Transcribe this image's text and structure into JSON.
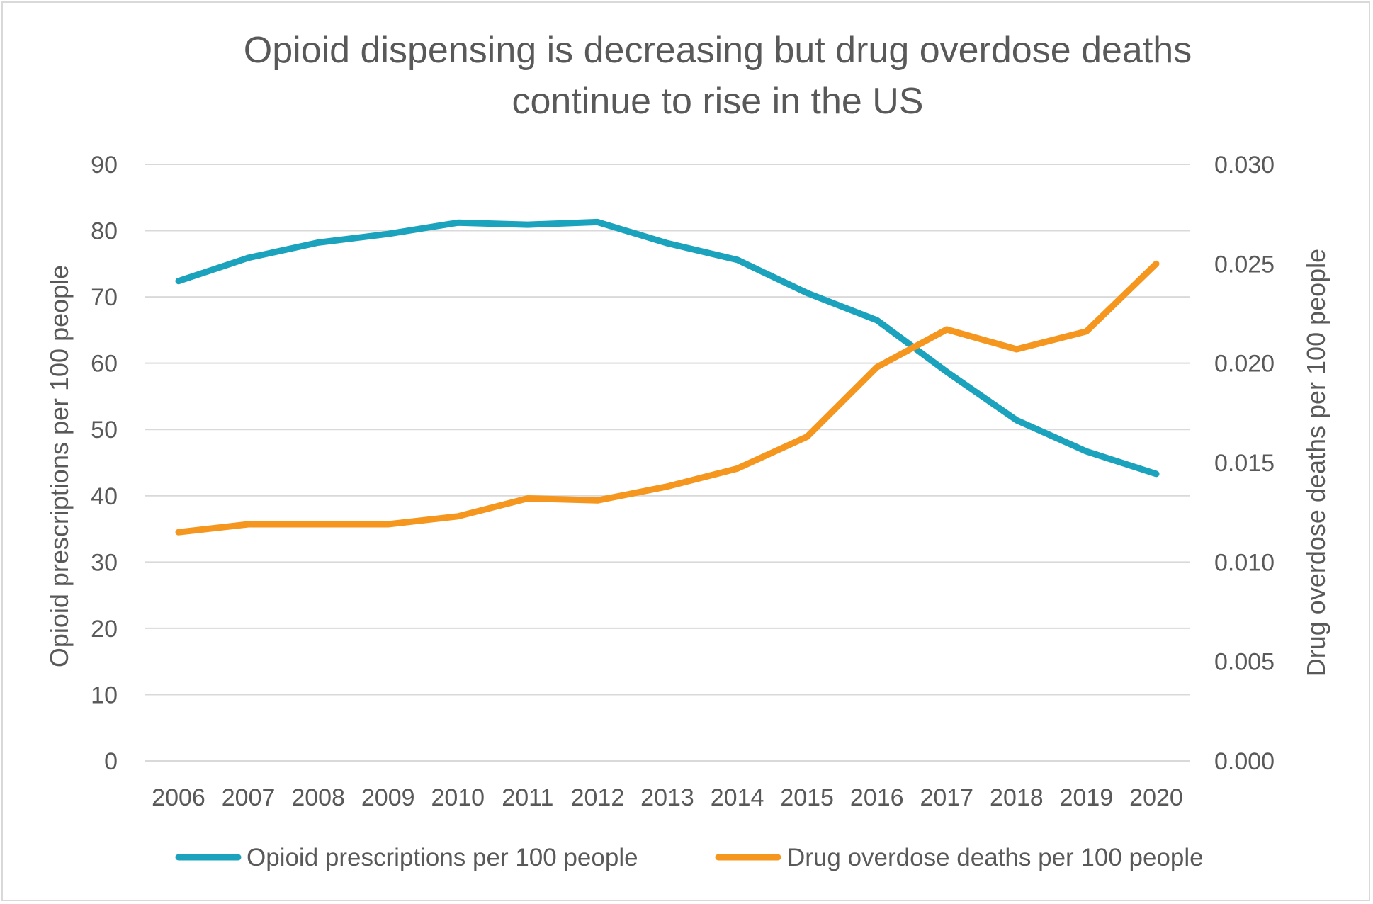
{
  "chart_data": {
    "type": "line",
    "title_lines": [
      "Opioid dispensing is decreasing but drug overdose deaths",
      "continue to rise in the US"
    ],
    "categories": [
      "2006",
      "2007",
      "2008",
      "2009",
      "2010",
      "2011",
      "2012",
      "2013",
      "2014",
      "2015",
      "2016",
      "2017",
      "2018",
      "2019",
      "2020"
    ],
    "ylabel": "Opioid prescriptions per 100 people",
    "y2label": "Drug overdose deaths per 100 people",
    "ylim": [
      0,
      90
    ],
    "y2lim": [
      0,
      0.03
    ],
    "yticks": [
      "0",
      "10",
      "20",
      "30",
      "40",
      "50",
      "60",
      "70",
      "80",
      "90"
    ],
    "y2ticks": [
      "0.000",
      "0.005",
      "0.010",
      "0.015",
      "0.020",
      "0.025",
      "0.030"
    ],
    "grid": true,
    "legend_position": "bottom",
    "series": [
      {
        "name": "Opioid prescriptions per 100 people",
        "axis": "left",
        "color": "#1ba2bd",
        "values": [
          72.4,
          75.9,
          78.2,
          79.5,
          81.2,
          80.9,
          81.3,
          78.1,
          75.6,
          70.6,
          66.5,
          58.7,
          51.4,
          46.7,
          43.3
        ]
      },
      {
        "name": "Drug overdose deaths per 100 people",
        "axis": "right",
        "color": "#f5961f",
        "values": [
          0.0115,
          0.0119,
          0.0119,
          0.0119,
          0.0123,
          0.0132,
          0.0131,
          0.0138,
          0.0147,
          0.0163,
          0.0198,
          0.0217,
          0.0207,
          0.0216,
          0.025
        ]
      }
    ]
  }
}
